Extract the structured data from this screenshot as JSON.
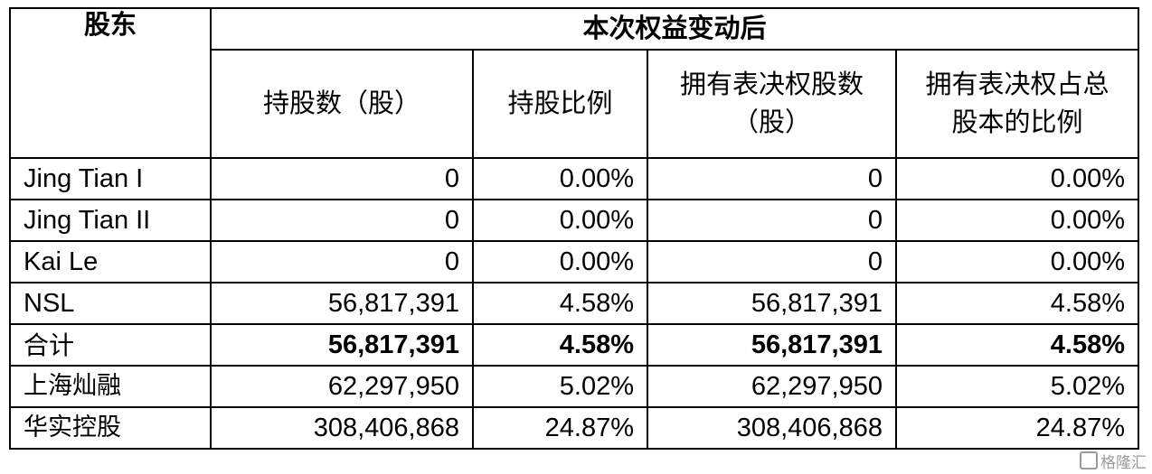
{
  "table": {
    "header": {
      "shareholder": "股东",
      "group_title": "本次权益变动后",
      "columns": [
        "持股数（股）",
        "持股比例",
        "拥有表决权股数（股）",
        "拥有表决权占总股本的比例"
      ]
    },
    "rows": [
      {
        "name": "Jing Tian I",
        "shares": "0",
        "ratio": "0.00%",
        "voting_shares": "0",
        "voting_ratio": "0.00%"
      },
      {
        "name": "Jing Tian II",
        "shares": "0",
        "ratio": "0.00%",
        "voting_shares": "0",
        "voting_ratio": "0.00%"
      },
      {
        "name": "Kai Le",
        "shares": "0",
        "ratio": "0.00%",
        "voting_shares": "0",
        "voting_ratio": "0.00%"
      },
      {
        "name": "NSL",
        "shares": "56,817,391",
        "ratio": "4.58%",
        "voting_shares": "56,817,391",
        "voting_ratio": "4.58%"
      },
      {
        "name": "合计",
        "shares": "56,817,391",
        "ratio": "4.58%",
        "voting_shares": "56,817,391",
        "voting_ratio": "4.58%"
      },
      {
        "name": "上海灿融",
        "shares": "62,297,950",
        "ratio": "5.02%",
        "voting_shares": "62,297,950",
        "voting_ratio": "5.02%"
      },
      {
        "name": "华实控股",
        "shares": "308,406,868",
        "ratio": "24.87%",
        "voting_shares": "308,406,868",
        "voting_ratio": "24.87%"
      }
    ]
  },
  "watermark": "格隆汇"
}
